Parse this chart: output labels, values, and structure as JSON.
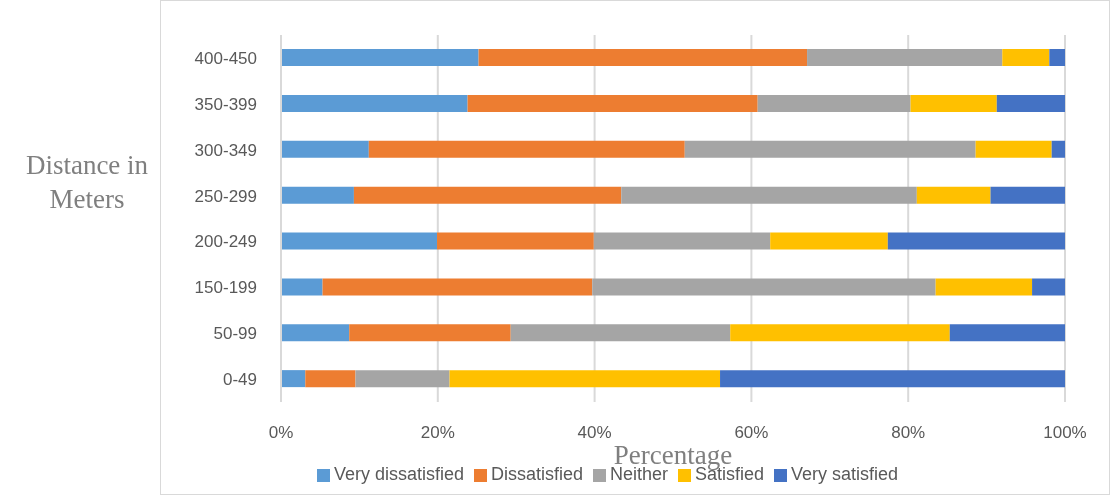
{
  "chart_data": {
    "type": "bar",
    "orientation": "horizontal",
    "stacked": true,
    "xlabel": "Percentage",
    "ylabel": "Distance in Meters",
    "categories": [
      "400-450",
      "350-399",
      "300-349",
      "250-299",
      "200-249",
      "150-199",
      "50-99",
      "0-49"
    ],
    "series": [
      {
        "name": "Very dissatisfied",
        "color": "#5b9bd5",
        "values": [
          25.2,
          23.8,
          11.2,
          9.3,
          19.9,
          5.3,
          8.7,
          3.1
        ]
      },
      {
        "name": "Dissatisfied",
        "color": "#ed7d31",
        "values": [
          41.9,
          37.0,
          40.3,
          34.1,
          20.0,
          34.4,
          20.6,
          6.4
        ]
      },
      {
        "name": "Neither",
        "color": "#a5a5a5",
        "values": [
          24.9,
          19.5,
          37.1,
          37.7,
          22.5,
          43.8,
          28.0,
          12.0
        ]
      },
      {
        "name": "Satisfied",
        "color": "#ffc000",
        "values": [
          6.0,
          11.0,
          9.7,
          9.4,
          15.0,
          12.3,
          28.0,
          34.5
        ]
      },
      {
        "name": "Very satisfied",
        "color": "#4472c4",
        "values": [
          2.0,
          8.7,
          1.7,
          9.5,
          22.6,
          4.2,
          14.7,
          44.0
        ]
      }
    ],
    "xlim": [
      0,
      100
    ],
    "xticks": [
      {
        "value": 0,
        "label": "0%"
      },
      {
        "value": 20,
        "label": "20%"
      },
      {
        "value": 40,
        "label": "40%"
      },
      {
        "value": 60,
        "label": "60%"
      },
      {
        "value": 80,
        "label": "80%"
      },
      {
        "value": 100,
        "label": "100%"
      }
    ],
    "grid": "x",
    "legend": "bottom"
  }
}
